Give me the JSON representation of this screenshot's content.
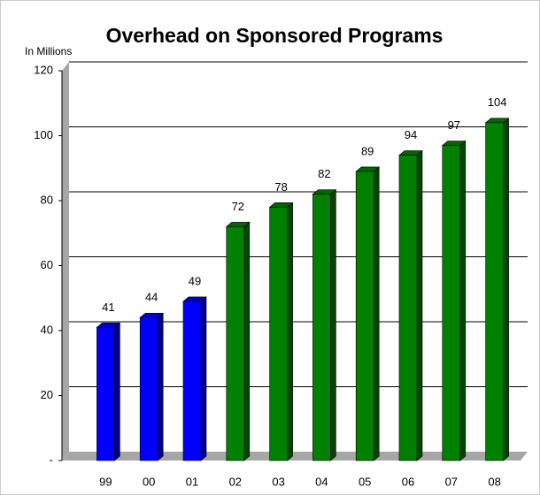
{
  "chart_data": {
    "type": "bar3d",
    "title": "Overhead on Sponsored Programs",
    "y_label": "In Millions",
    "categories": [
      "99",
      "00",
      "01",
      "02",
      "03",
      "04",
      "05",
      "06",
      "07",
      "08"
    ],
    "values": [
      41,
      44,
      49,
      72,
      78,
      82,
      89,
      94,
      97,
      104
    ],
    "colors": [
      "#0000ff",
      "#0000ff",
      "#0000ff",
      "#008000",
      "#008000",
      "#008000",
      "#008000",
      "#008000",
      "#008000",
      "#008000"
    ],
    "ylim": [
      0,
      120
    ],
    "yticks": [
      {
        "value": 0,
        "label": "-"
      },
      20,
      40,
      60,
      80,
      100,
      120
    ],
    "grid": true
  }
}
